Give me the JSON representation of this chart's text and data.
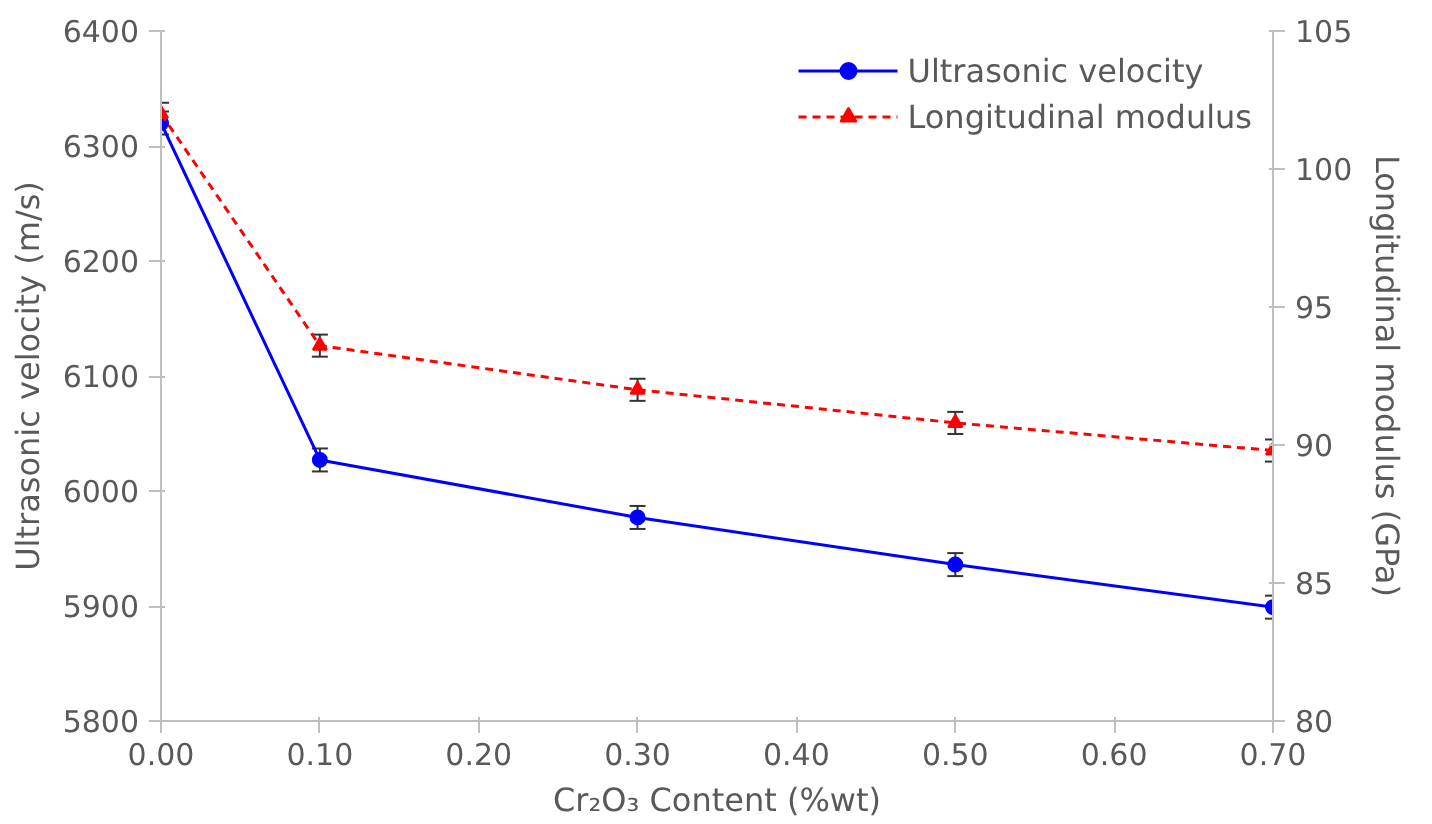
{
  "chart_data": {
    "type": "line",
    "xlabel": "Cr₂O₃ Content (%wt)",
    "ylabel": "Ultrasonic velocity (m/s)",
    "y2label": "Longitudinal modulus (GPa)",
    "x": [
      0.0,
      0.1,
      0.3,
      0.5,
      0.7
    ],
    "xlim": [
      0,
      0.7
    ],
    "xticks": [
      {
        "value": 0,
        "label": "0.00"
      },
      {
        "value": 0.1,
        "label": "0.10"
      },
      {
        "value": 0.2,
        "label": "0.20"
      },
      {
        "value": 0.3,
        "label": "0.30"
      },
      {
        "value": 0.4,
        "label": "0.40"
      },
      {
        "value": 0.5,
        "label": "0.50"
      },
      {
        "value": 0.6,
        "label": "0.60"
      },
      {
        "value": 0.7,
        "label": "0.70"
      }
    ],
    "ylim": [
      5800,
      6400
    ],
    "yticks": [
      5800,
      5900,
      6000,
      6100,
      6200,
      6300,
      6400
    ],
    "y2lim": [
      80,
      105
    ],
    "y2ticks": [
      80,
      85,
      90,
      95,
      100,
      105
    ],
    "series": [
      {
        "name": "Ultrasonic velocity",
        "color": "#0000ff",
        "values": [
          6320,
          6027,
          5977,
          5936,
          5899
        ],
        "errors": [
          10,
          10,
          10,
          10,
          10
        ],
        "marker": "circle",
        "line_style": "solid"
      },
      {
        "name": "Longitudinal modulus",
        "color": "#ff0000",
        "values": [
          102.0,
          93.6,
          92.0,
          90.8,
          89.8
        ],
        "errors": [
          0.4,
          0.4,
          0.4,
          0.4,
          0.4
        ],
        "marker": "triangle",
        "line_style": "dashed",
        "axis": "y2"
      }
    ],
    "grid": false,
    "legend": "top right"
  }
}
